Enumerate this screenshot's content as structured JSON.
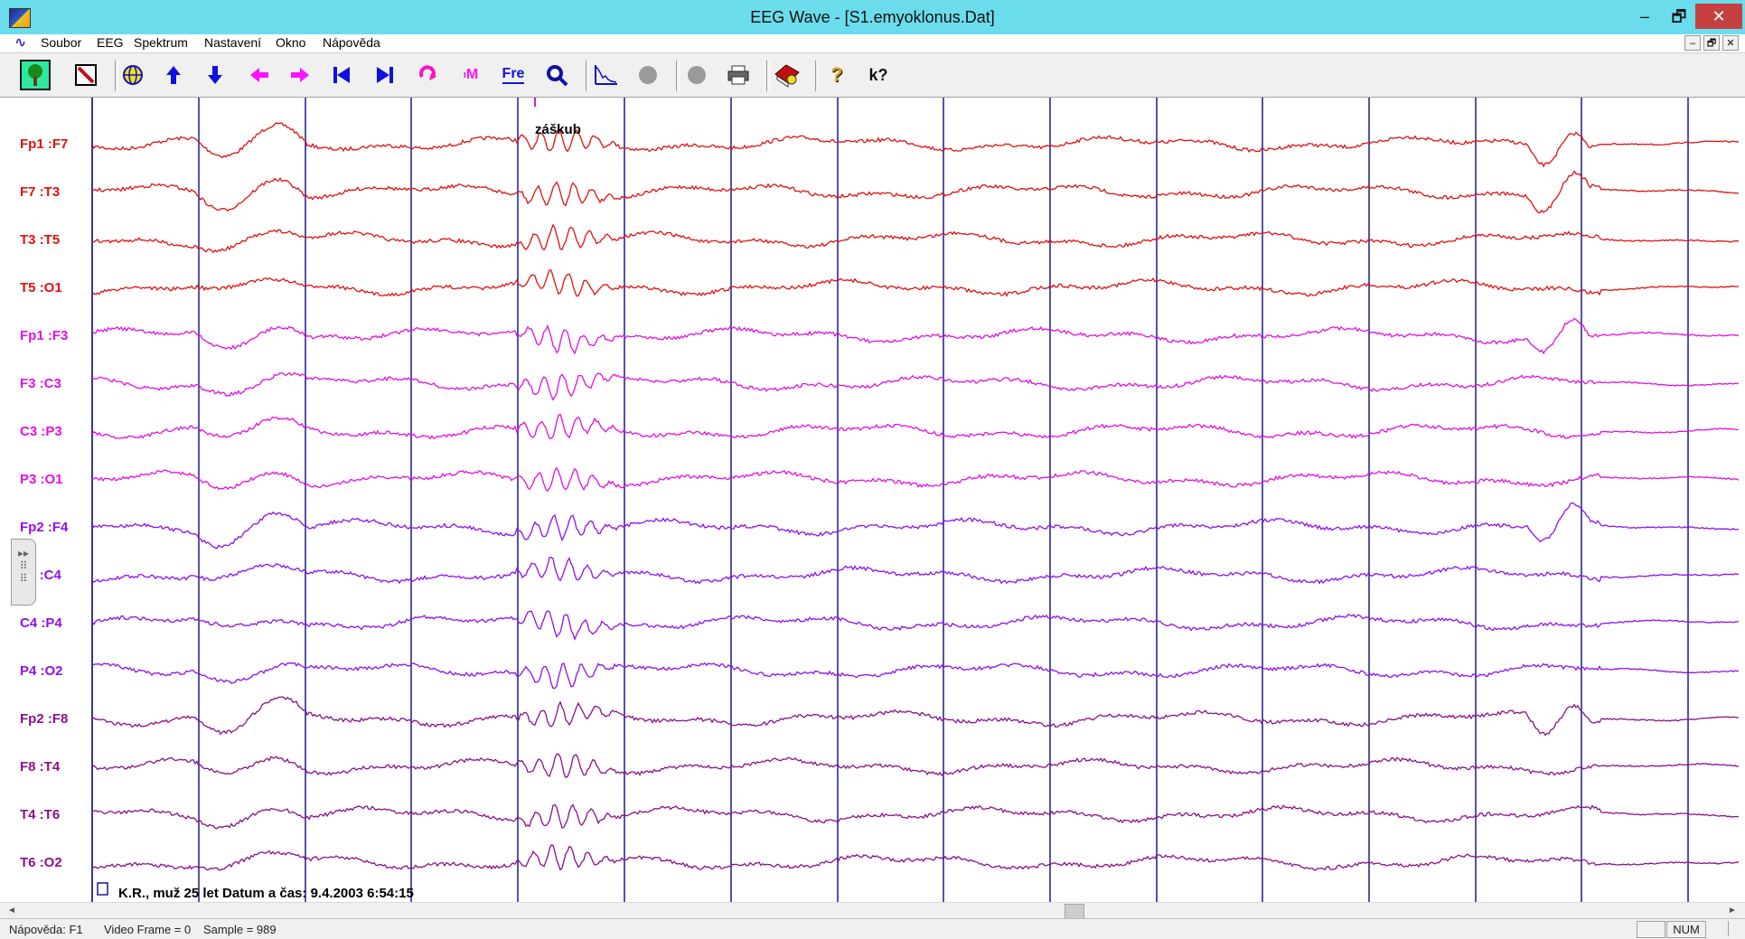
{
  "window": {
    "title": "EEG Wave - [S1.emyoklonus.Dat]",
    "minimize": "–",
    "maximize": "🗗",
    "close": "✕"
  },
  "menu": {
    "items": [
      "Soubor",
      "EEG",
      "Spektrum",
      "Nastavení",
      "Okno",
      "Nápověda"
    ],
    "mdi_minimize": "–",
    "mdi_restore": "🗗",
    "mdi_close": "✕"
  },
  "toolbar": {
    "fre_label": "Fre",
    "m_label": "M",
    "help_label": "?",
    "whatsthis_label": "k?"
  },
  "eeg": {
    "annotation": "záškub",
    "footer_text": "K.R., muž 25 let Datum a čas: 9.4.2003 6:54:15",
    "channels": [
      {
        "label": "Fp1 :F7",
        "color": "#e01010"
      },
      {
        "label": "F7   :T3",
        "color": "#e01010"
      },
      {
        "label": "T3   :T5",
        "color": "#e01010"
      },
      {
        "label": "T5   :O1",
        "color": "#e01010"
      },
      {
        "label": "Fp1 :F3",
        "color": "#e010e0"
      },
      {
        "label": "F3   :C3",
        "color": "#e010e0"
      },
      {
        "label": "C3   :P3",
        "color": "#e010e0"
      },
      {
        "label": "P3   :O1",
        "color": "#e010e0"
      },
      {
        "label": "Fp2 :F4",
        "color": "#9010e8"
      },
      {
        "label": "F4   :C4",
        "color": "#9010e8"
      },
      {
        "label": "C4   :P4",
        "color": "#9010e8"
      },
      {
        "label": "P4   :O2",
        "color": "#9010e8"
      },
      {
        "label": "Fp2 :F8",
        "color": "#8a108a"
      },
      {
        "label": "F8   :T4",
        "color": "#8a108a"
      },
      {
        "label": "T4   :T6",
        "color": "#8a108a"
      },
      {
        "label": "T6   :O2",
        "color": "#8a108a"
      }
    ],
    "grid_color": "#1a1a8c",
    "marker_color": "#e010e0"
  },
  "statusbar": {
    "help": "Nápověda: F1",
    "video_frame": "Video Frame = 0",
    "sample": "Sample = 989",
    "num": "NUM"
  },
  "scrollbar": {
    "left_arrow": "◄",
    "right_arrow": "►"
  }
}
